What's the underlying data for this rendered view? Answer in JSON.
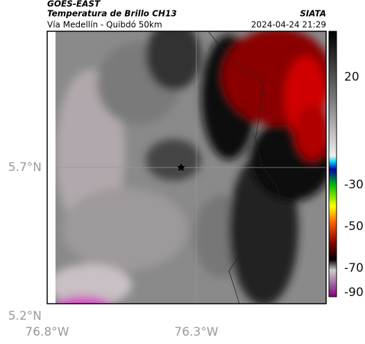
{
  "header": {
    "source": "GOES-EAST",
    "title": "Temperatura de Brillo CH13",
    "subtitle": "Vía Medellín - Quibdó 50km",
    "org": "SIATA",
    "datetime": "2024-04-24 21:29"
  },
  "axes": {
    "lat_labels": [
      "5.7°N",
      "5.2°N"
    ],
    "lon_labels": [
      "76.8°W",
      "76.3°W"
    ]
  },
  "colorbar": {
    "tick_labels": [
      "20",
      "-30",
      "-50",
      "-70",
      "-90"
    ]
  }
}
